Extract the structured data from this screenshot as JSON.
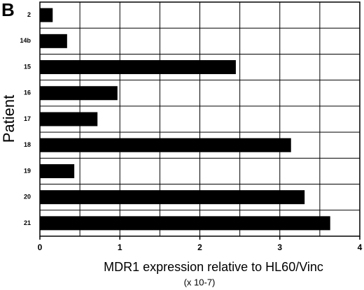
{
  "panel_label": "B",
  "chart_data": {
    "type": "hbar",
    "xlabel": "MDR1 expression relative to HL60/Vinc",
    "xlabel_sub": "(x 10-7)",
    "ylabel": "Patient",
    "categories": [
      "2",
      "14b",
      "15",
      "16",
      "17",
      "18",
      "19",
      "20",
      "21"
    ],
    "values": [
      0.16,
      0.34,
      2.45,
      0.97,
      0.72,
      3.14,
      0.43,
      3.31,
      3.63
    ],
    "color": "#000000",
    "xlim": [
      0,
      4
    ],
    "xticks": [
      0,
      1,
      2,
      3,
      4
    ],
    "xgrid": [
      0,
      0.5,
      1,
      1.5,
      2,
      2.5,
      3,
      3.5,
      4
    ],
    "grid": true
  }
}
